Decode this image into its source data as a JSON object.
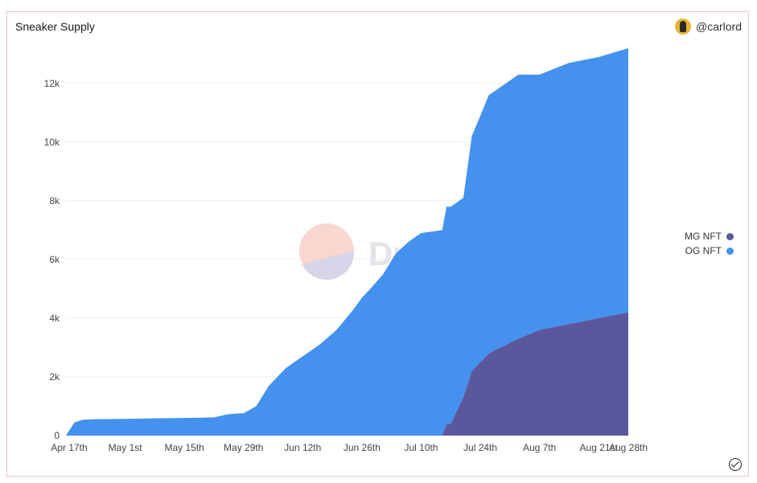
{
  "header": {
    "title": "Sneaker Supply",
    "author": "@carlord"
  },
  "watermark": "Dune",
  "chart_data": {
    "type": "area",
    "stacked": true,
    "x": [
      "2022-04-17",
      "2022-04-19",
      "2022-04-21",
      "2022-04-24",
      "2022-05-01",
      "2022-05-08",
      "2022-05-15",
      "2022-05-22",
      "2022-05-25",
      "2022-05-27",
      "2022-05-29",
      "2022-06-01",
      "2022-06-04",
      "2022-06-08",
      "2022-06-12",
      "2022-06-16",
      "2022-06-20",
      "2022-06-24",
      "2022-06-26",
      "2022-06-28",
      "2022-07-01",
      "2022-07-04",
      "2022-07-07",
      "2022-07-10",
      "2022-07-15",
      "2022-07-16",
      "2022-07-17",
      "2022-07-20",
      "2022-07-22",
      "2022-07-24",
      "2022-07-26",
      "2022-08-02",
      "2022-08-07",
      "2022-08-14",
      "2022-08-21",
      "2022-08-28"
    ],
    "series": [
      {
        "name": "MG NFT",
        "color": "#5b579d",
        "values": [
          0,
          0,
          0,
          0,
          0,
          0,
          0,
          0,
          0,
          0,
          0,
          0,
          0,
          0,
          0,
          0,
          0,
          0,
          0,
          0,
          0,
          0,
          0,
          0,
          0,
          400,
          400,
          1300,
          2200,
          2500,
          2800,
          3300,
          3600,
          3800,
          4000,
          4200
        ]
      },
      {
        "name": "OG NFT",
        "color": "#4491ee",
        "values": [
          0,
          450,
          540,
          560,
          570,
          590,
          600,
          620,
          720,
          750,
          760,
          1000,
          1700,
          2300,
          2700,
          3100,
          3600,
          4300,
          4700,
          5000,
          5500,
          6200,
          6600,
          6900,
          7000,
          7400,
          7400,
          6800,
          8000,
          8400,
          8800,
          9000,
          8700,
          8900,
          8900,
          9000
        ]
      }
    ],
    "x_ticks": [
      "Apr 17th",
      "May 1st",
      "May 15th",
      "May 29th",
      "Jun 12th",
      "Jun 26th",
      "Jul 10th",
      "Jul 24th",
      "Aug 7th",
      "Aug 21st",
      "Aug 28th"
    ],
    "y_ticks": [
      "0",
      "2k",
      "4k",
      "6k",
      "8k",
      "10k",
      "12k"
    ],
    "ylim": [
      0,
      13200
    ],
    "grid": true,
    "legend_position": "right"
  },
  "legend": {
    "items": [
      {
        "label": "MG NFT",
        "color": "#5b579d"
      },
      {
        "label": "OG NFT",
        "color": "#4491ee"
      }
    ]
  }
}
